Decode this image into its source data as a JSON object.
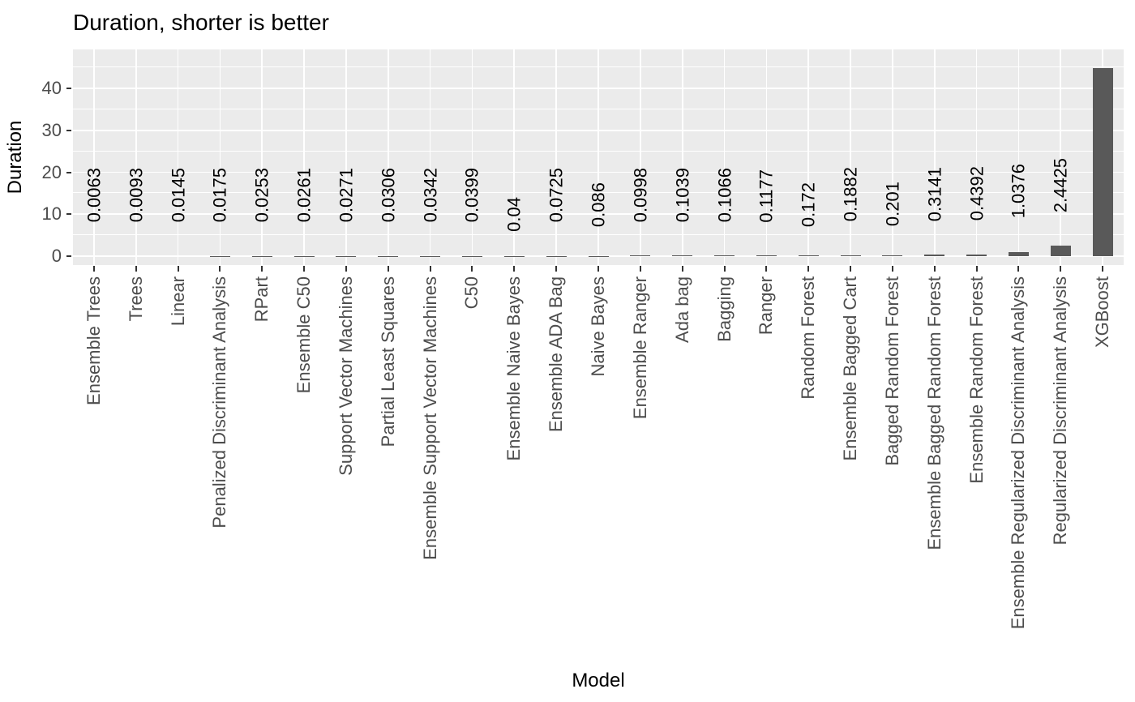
{
  "chart_data": {
    "type": "bar",
    "title": "Duration, shorter is better",
    "xlabel": "Model",
    "ylabel": "Duration",
    "categories": [
      "Ensemble Trees",
      "Trees",
      "Linear",
      "Penalized Discriminant Analysis",
      "RPart",
      "Ensemble C50",
      "Support Vector Machines",
      "Partial Least Squares",
      "Ensemble Support Vector Machines",
      "C50",
      "Ensemble Naive Bayes",
      "Ensemble ADA Bag",
      "Naive Bayes",
      "Ensemble Ranger",
      "Ada bag",
      "Bagging",
      "Ranger",
      "Random Forest",
      "Ensemble Bagged Cart",
      "Bagged Random Forest",
      "Ensemble Bagged Random Forest",
      "Ensemble Random Forest",
      "Ensemble Regularized Discriminant Analysis",
      "Regularized Discriminant Analysis",
      "XGBoost"
    ],
    "values": [
      0.0063,
      0.0093,
      0.0145,
      0.0175,
      0.0253,
      0.0261,
      0.0271,
      0.0306,
      0.0342,
      0.0399,
      0.04,
      0.0725,
      0.086,
      0.0998,
      0.1039,
      0.1066,
      0.1177,
      0.172,
      0.1882,
      0.201,
      0.3141,
      0.4392,
      1.0376,
      2.4425,
      44.8
    ],
    "bar_labels": [
      "0.0063",
      "0.0093",
      "0.0145",
      "0.0175",
      "0.0253",
      "0.0261",
      "0.0271",
      "0.0306",
      "0.0342",
      "0.0399",
      "0.04",
      "0.0725",
      "0.086",
      "0.0998",
      "0.1039",
      "0.1066",
      "0.1177",
      "0.172",
      "0.1882",
      "0.201",
      "0.3141",
      "0.4392",
      "1.0376",
      "2.4425",
      ""
    ],
    "yticks": [
      0,
      10,
      20,
      30,
      40
    ],
    "yticks_minor": [
      5,
      15,
      25,
      35,
      45
    ],
    "ylim": [
      0,
      49
    ],
    "legend": "none",
    "grid": "white major and minor gridlines on grey panel",
    "colors": {
      "bar_fill": "#595959",
      "panel_bg": "#EBEBEB",
      "gridline": "#FFFFFF",
      "axis_text": "#4D4D4D",
      "tick_mark": "#333333",
      "text": "#000000",
      "figure_bg": "#FFFFFF"
    }
  }
}
